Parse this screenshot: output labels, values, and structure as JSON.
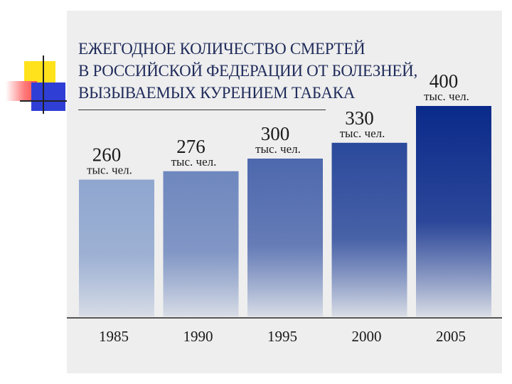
{
  "slide": {
    "title": "Ежегодное количество смертей\nв Российской Федерации от болезней,\nвызываемых курением табака"
  },
  "colors": {
    "panel_background": "#eeeeee",
    "bar_top": "#0a2a8a",
    "bar_bottom": "#d8dde6"
  },
  "chart_data": {
    "type": "bar",
    "categories": [
      "1985",
      "1990",
      "1995",
      "2000",
      "2005"
    ],
    "values": [
      260,
      276,
      300,
      330,
      400
    ],
    "data_labels": [
      "260",
      "276",
      "300",
      "330",
      "400"
    ],
    "unit_label": "тыс. чел.",
    "ylim": [
      0,
      400
    ],
    "grid": false,
    "legend": "none",
    "title": "Ежегодное количество смертей в Российской Федерации от болезней, вызываемых курением табака",
    "xlabel": "",
    "ylabel": ""
  }
}
